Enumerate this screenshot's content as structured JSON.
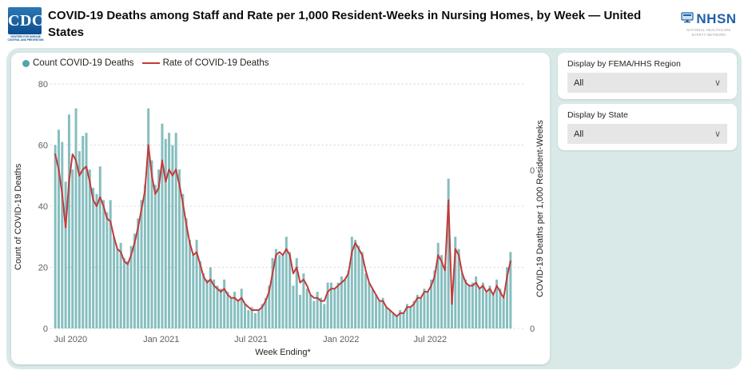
{
  "header": {
    "cdc_logo_text": "CDC",
    "cdc_tagline": "CENTERS FOR DISEASE CONTROL AND PREVENTION",
    "title": "COVID-19 Deaths among Staff and Rate per 1,000 Resident-Weeks in Nursing Homes, by Week — United States",
    "nhsn_name": "NHSN",
    "nhsn_tagline_line1": "NATIONAL HEALTHCARE",
    "nhsn_tagline_line2": "SAFETY NETWORK"
  },
  "filters": [
    {
      "label": "Display by FEMA/HHS Region",
      "value": "All"
    },
    {
      "label": "Display by State",
      "value": "All"
    }
  ],
  "colors": {
    "bar": "#86bebf",
    "line": "#c13b3b",
    "legend_dot": "#55a3ac",
    "panel": "#d9e9e8",
    "grid": "#c9c9c9",
    "tick_text": "#605e5c"
  },
  "chart_data": {
    "type": "bar",
    "subtype": "weekly bars with overlaid rate line",
    "title": "COVID-19 Deaths among Staff and Rate per 1,000 Resident-Weeks in Nursing Homes, by Week — United States",
    "xlabel": "Week Ending*",
    "left_axis": {
      "label": "Count of COVID-19 Deaths",
      "ticks": [
        0,
        20,
        40,
        60,
        80
      ],
      "ylim": [
        0,
        80
      ]
    },
    "right_axis": {
      "label": "COVID-19 Deaths per 1,000 Resident-Weeks",
      "tick_labels": [
        "0",
        "0"
      ]
    },
    "legend": [
      {
        "label": "Count COVID-19 Deaths",
        "marker": "dot"
      },
      {
        "label": "Rate of COVID-19 Deaths",
        "marker": "line"
      }
    ],
    "x_tick_labels": [
      "Jul 2020",
      "Jan 2021",
      "Jul 2021",
      "Jan 2022",
      "Jul 2022"
    ],
    "x_tick_week_index": [
      4.43,
      30.71,
      56.71,
      82.86,
      108.71
    ],
    "weeks_span_note": "weekly bars, approx. Jun 2020 through Dec 2022",
    "series": [
      {
        "name": "Count COVID-19 Deaths",
        "values": [
          60,
          65,
          61,
          48,
          70,
          52,
          72,
          58,
          63,
          64,
          52,
          46,
          44,
          53,
          42,
          38,
          42,
          30,
          26,
          28,
          23,
          22,
          27,
          31,
          36,
          42,
          47,
          72,
          55,
          47,
          52,
          67,
          62,
          64,
          60,
          64,
          52,
          44,
          36,
          29,
          24,
          29,
          22,
          18,
          16,
          20,
          16,
          14,
          13,
          16,
          12,
          10,
          12,
          9,
          13,
          8,
          6,
          7,
          5,
          6,
          8,
          10,
          14,
          23,
          26,
          24,
          24,
          30,
          25,
          14,
          23,
          11,
          18,
          13,
          11,
          9,
          12,
          10,
          8,
          15,
          15,
          13,
          15,
          17,
          16,
          19,
          30,
          29,
          27,
          25,
          18,
          15,
          13,
          11,
          9,
          10,
          7,
          6,
          5,
          4,
          6,
          5,
          8,
          7,
          9,
          11,
          10,
          13,
          12,
          16,
          19,
          28,
          24,
          20,
          49,
          10,
          30,
          26,
          18,
          16,
          14,
          15,
          17,
          13,
          15,
          12,
          14,
          11,
          16,
          13,
          10,
          20,
          25
        ]
      },
      {
        "name": "Rate of COVID-19 Deaths",
        "axis": "right (tick labels render as 0)",
        "values_count_scale": [
          57,
          52,
          44,
          33,
          48,
          57,
          55,
          50,
          52,
          53,
          48,
          42,
          40,
          43,
          40,
          36,
          35,
          30,
          26,
          25,
          22,
          21,
          24,
          28,
          33,
          39,
          45,
          60,
          50,
          44,
          46,
          55,
          48,
          52,
          50,
          52,
          47,
          41,
          34,
          28,
          24,
          25,
          21,
          17,
          15,
          16,
          14,
          13,
          12,
          13,
          11,
          10,
          10,
          9,
          10,
          8,
          7,
          6,
          6,
          6,
          7,
          9,
          12,
          18,
          24,
          25,
          24,
          26,
          24,
          18,
          20,
          15,
          16,
          14,
          11,
          10,
          10,
          9,
          9,
          12,
          13,
          13,
          14,
          15,
          16,
          18,
          25,
          28,
          26,
          24,
          19,
          15,
          13,
          11,
          9,
          9,
          7,
          6,
          5,
          4,
          5,
          5,
          7,
          7,
          8,
          10,
          10,
          12,
          12,
          14,
          17,
          24,
          22,
          19,
          42,
          8,
          26,
          24,
          18,
          15,
          14,
          14,
          15,
          13,
          14,
          12,
          13,
          11,
          14,
          12,
          10,
          17,
          22
        ]
      }
    ],
    "grid": "dotted horizontal gridlines",
    "legend_position": "top-left"
  }
}
